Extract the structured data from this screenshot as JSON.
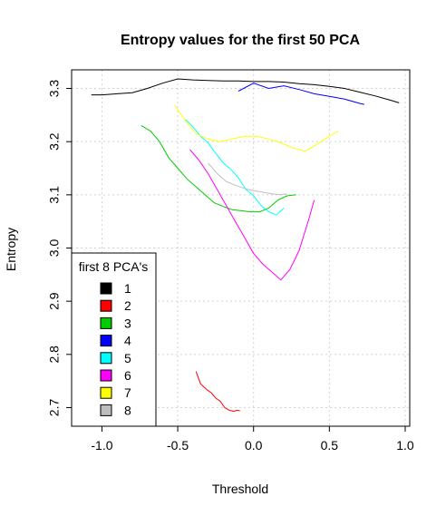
{
  "chart_data": {
    "type": "line",
    "title": "Entropy values for the first 50 PCA",
    "xlabel": "Threshold",
    "ylabel": "Entropy",
    "xlim": [
      -1.2,
      1.03
    ],
    "ylim": [
      2.665,
      3.335
    ],
    "xticks": [
      -1.0,
      -0.5,
      0.0,
      0.5,
      1.0
    ],
    "xtick_labels": [
      "-1.0",
      "-0.5",
      "0.0",
      "0.5",
      "1.0"
    ],
    "yticks": [
      2.7,
      2.8,
      2.9,
      3.0,
      3.1,
      3.2,
      3.3
    ],
    "ytick_labels": [
      "2.7",
      "2.8",
      "2.9",
      "3.0",
      "3.1",
      "3.2",
      "3.3"
    ],
    "grid": true,
    "legend": {
      "title": "first 8 PCA's",
      "position": "bottom-left",
      "entries": [
        {
          "label": "1",
          "color": "#000000"
        },
        {
          "label": "2",
          "color": "#ff0000"
        },
        {
          "label": "3",
          "color": "#00cd00"
        },
        {
          "label": "4",
          "color": "#0000ff"
        },
        {
          "label": "5",
          "color": "#00ffff"
        },
        {
          "label": "6",
          "color": "#ff00ff"
        },
        {
          "label": "7",
          "color": "#ffff00"
        },
        {
          "label": "8",
          "color": "#bebebe"
        }
      ]
    },
    "series": [
      {
        "name": "1",
        "color": "#000000",
        "x": [
          -1.07,
          -1.0,
          -0.9,
          -0.8,
          -0.7,
          -0.6,
          -0.5,
          -0.4,
          -0.3,
          -0.2,
          -0.1,
          0.0,
          0.1,
          0.2,
          0.3,
          0.4,
          0.5,
          0.6,
          0.7,
          0.8,
          0.9,
          0.96
        ],
        "y": [
          3.288,
          3.288,
          3.29,
          3.292,
          3.3,
          3.31,
          3.318,
          3.316,
          3.315,
          3.314,
          3.314,
          3.313,
          3.313,
          3.312,
          3.309,
          3.307,
          3.304,
          3.3,
          3.293,
          3.286,
          3.278,
          3.273
        ]
      },
      {
        "name": "2",
        "color": "#ff0000",
        "x": [
          -0.38,
          -0.35,
          -0.31,
          -0.28,
          -0.25,
          -0.22,
          -0.19,
          -0.16,
          -0.13,
          -0.11,
          -0.09
        ],
        "y": [
          2.768,
          2.745,
          2.734,
          2.728,
          2.718,
          2.712,
          2.7,
          2.695,
          2.693,
          2.695,
          2.694
        ]
      },
      {
        "name": "3",
        "color": "#00cd00",
        "x": [
          -0.74,
          -0.68,
          -0.62,
          -0.56,
          -0.5,
          -0.44,
          -0.38,
          -0.32,
          -0.26,
          -0.2,
          -0.14,
          -0.08,
          -0.02,
          0.04,
          0.1,
          0.16,
          0.22,
          0.28
        ],
        "y": [
          3.23,
          3.22,
          3.2,
          3.17,
          3.15,
          3.13,
          3.115,
          3.1,
          3.085,
          3.078,
          3.072,
          3.07,
          3.068,
          3.068,
          3.075,
          3.09,
          3.098,
          3.1
        ]
      },
      {
        "name": "4",
        "color": "#0000ff",
        "x": [
          -0.1,
          0.0,
          0.1,
          0.2,
          0.3,
          0.4,
          0.5,
          0.6,
          0.7,
          0.73
        ],
        "y": [
          3.295,
          3.31,
          3.3,
          3.305,
          3.298,
          3.29,
          3.285,
          3.28,
          3.272,
          3.27
        ]
      },
      {
        "name": "5",
        "color": "#00ffff",
        "x": [
          -0.45,
          -0.4,
          -0.35,
          -0.3,
          -0.25,
          -0.2,
          -0.15,
          -0.1,
          -0.05,
          0.0,
          0.05,
          0.1,
          0.15,
          0.2
        ],
        "y": [
          3.242,
          3.228,
          3.21,
          3.198,
          3.178,
          3.16,
          3.148,
          3.132,
          3.11,
          3.098,
          3.08,
          3.068,
          3.062,
          3.075
        ]
      },
      {
        "name": "6",
        "color": "#ff00ff",
        "x": [
          -0.42,
          -0.36,
          -0.3,
          -0.24,
          -0.18,
          -0.12,
          -0.06,
          0.0,
          0.06,
          0.12,
          0.18,
          0.24,
          0.3,
          0.36,
          0.4
        ],
        "y": [
          3.185,
          3.165,
          3.14,
          3.11,
          3.08,
          3.05,
          3.02,
          2.99,
          2.97,
          2.955,
          2.94,
          2.96,
          2.995,
          3.05,
          3.09
        ]
      },
      {
        "name": "7",
        "color": "#ffff00",
        "x": [
          -0.52,
          -0.45,
          -0.38,
          -0.3,
          -0.22,
          -0.14,
          -0.06,
          0.02,
          0.1,
          0.18,
          0.26,
          0.34,
          0.42,
          0.5,
          0.56
        ],
        "y": [
          3.268,
          3.24,
          3.215,
          3.205,
          3.2,
          3.205,
          3.21,
          3.21,
          3.205,
          3.198,
          3.188,
          3.182,
          3.195,
          3.21,
          3.22
        ]
      },
      {
        "name": "8",
        "color": "#bebebe",
        "x": [
          -0.3,
          -0.24,
          -0.18,
          -0.12,
          -0.06,
          0.0,
          0.06,
          0.12,
          0.18,
          0.22
        ],
        "y": [
          3.16,
          3.14,
          3.125,
          3.118,
          3.112,
          3.108,
          3.105,
          3.102,
          3.1,
          3.102
        ]
      }
    ],
    "extra_series_colors": [
      "#000000",
      "#ff0000",
      "#00cd00",
      "#0000ff",
      "#00ffff",
      "#ff00ff",
      "#ffff00",
      "#bebebe"
    ]
  }
}
